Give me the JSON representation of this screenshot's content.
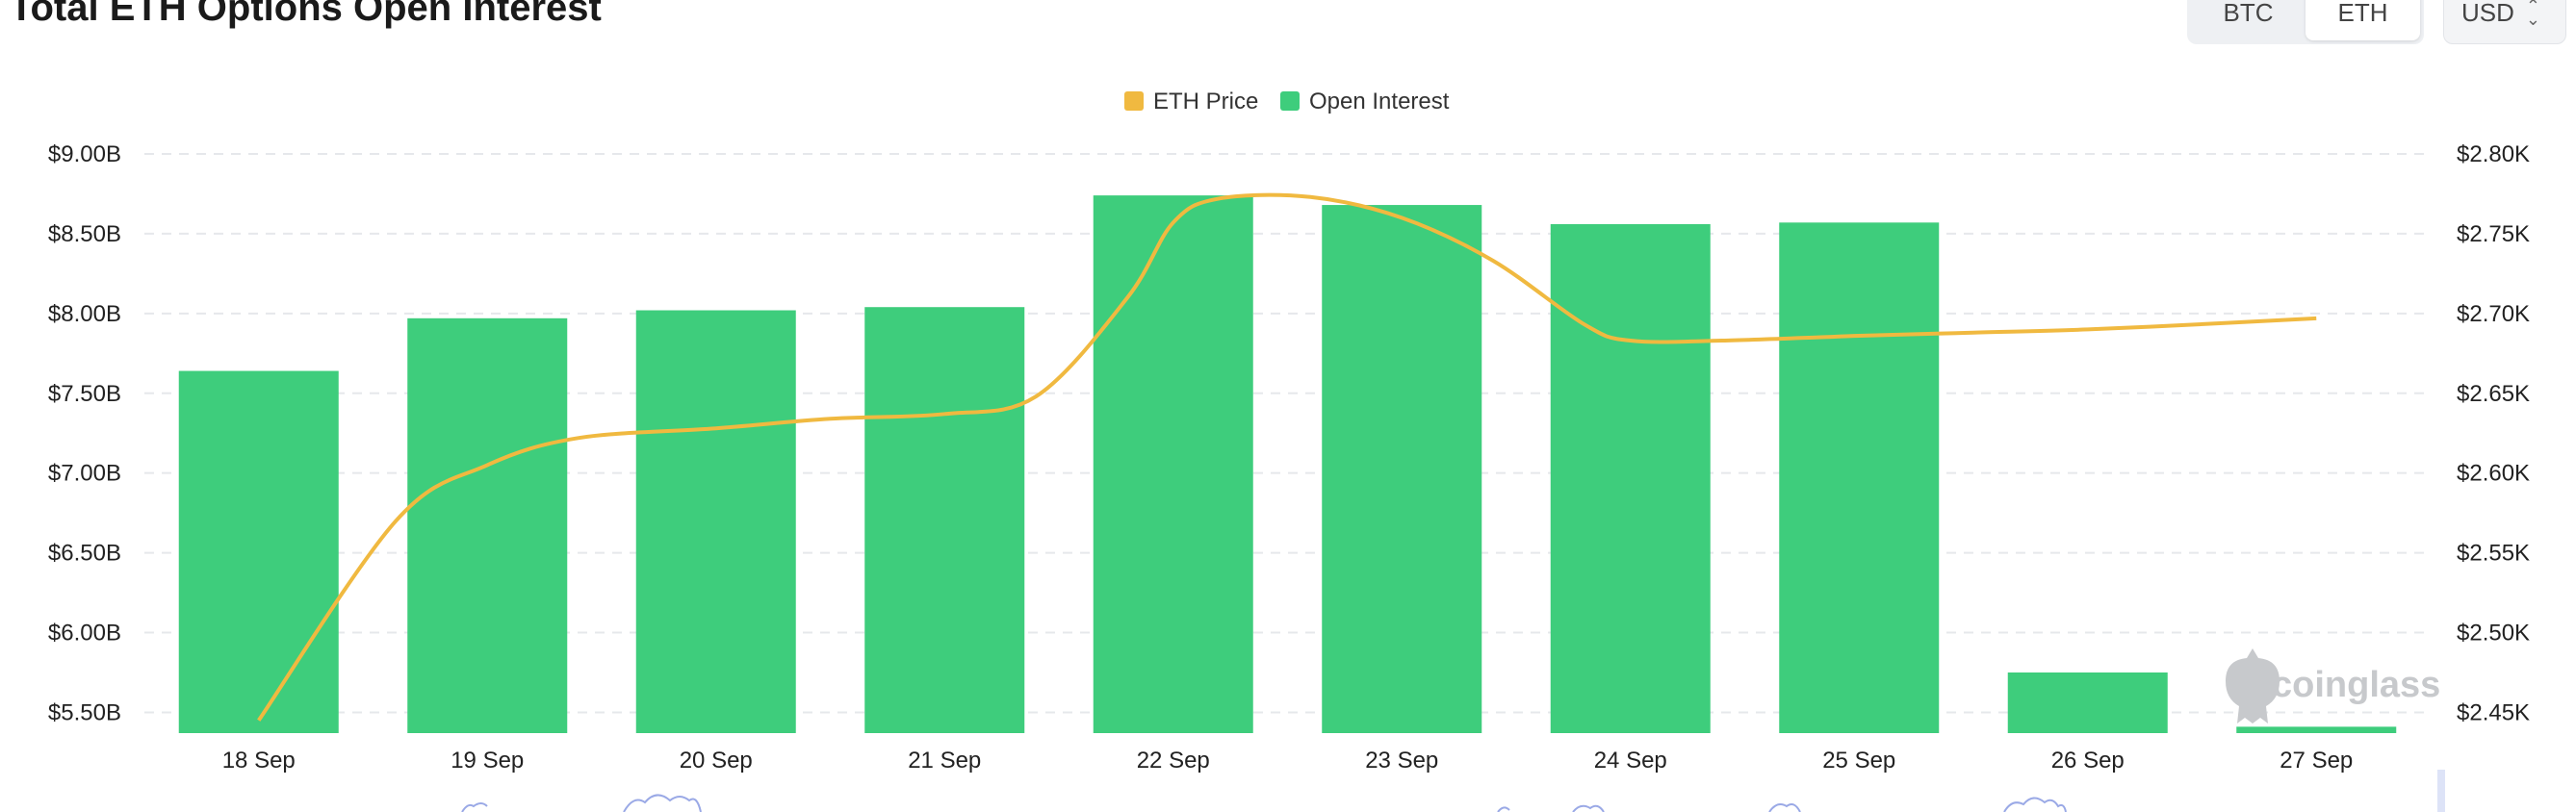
{
  "title": "Total ETH Options Open Interest",
  "toggle": {
    "options": [
      "BTC",
      "ETH"
    ],
    "selected": "ETH"
  },
  "currency": {
    "selected": "USD"
  },
  "watermark": "coinglass",
  "colors": {
    "bar": "#3ecd7c",
    "line": "#f0b940",
    "grid": "#e6e8eb",
    "background": "#ffffff"
  },
  "chart_data": {
    "type": "bar",
    "legend_position": "top-center",
    "grid": true,
    "categories": [
      "18 Sep",
      "19 Sep",
      "20 Sep",
      "21 Sep",
      "22 Sep",
      "23 Sep",
      "24 Sep",
      "25 Sep",
      "26 Sep",
      "27 Sep"
    ],
    "series": [
      {
        "name": "Open Interest",
        "type": "bar",
        "axis": "left",
        "values": [
          7.64,
          7.97,
          8.02,
          8.04,
          8.74,
          8.68,
          8.56,
          8.57,
          5.75,
          5.41
        ]
      },
      {
        "name": "ETH Price",
        "type": "line",
        "axis": "right",
        "points": [
          [
            0,
            2.445
          ],
          [
            0.6,
            2.57
          ],
          [
            1.0,
            2.605
          ],
          [
            1.4,
            2.622
          ],
          [
            2.0,
            2.628
          ],
          [
            2.5,
            2.634
          ],
          [
            3.0,
            2.637
          ],
          [
            3.4,
            2.648
          ],
          [
            3.8,
            2.71
          ],
          [
            4.0,
            2.757
          ],
          [
            4.2,
            2.772
          ],
          [
            4.6,
            2.773
          ],
          [
            5.0,
            2.76
          ],
          [
            5.4,
            2.733
          ],
          [
            5.8,
            2.693
          ],
          [
            6.0,
            2.683
          ],
          [
            6.4,
            2.683
          ],
          [
            7.0,
            2.686
          ],
          [
            7.5,
            2.688
          ],
          [
            8.0,
            2.69
          ],
          [
            8.6,
            2.694
          ],
          [
            9.0,
            2.697
          ]
        ]
      }
    ],
    "y_left": {
      "min": 5.37,
      "max": 9.0,
      "ticks": [
        5.5,
        6.0,
        6.5,
        7.0,
        7.5,
        8.0,
        8.5,
        9.0
      ],
      "tick_labels": [
        "$5.50B",
        "$6.00B",
        "$6.50B",
        "$7.00B",
        "$7.50B",
        "$8.00B",
        "$8.50B",
        "$9.00B"
      ]
    },
    "y_right": {
      "min": 2.437,
      "max": 2.8,
      "ticks": [
        2.45,
        2.5,
        2.55,
        2.6,
        2.65,
        2.7,
        2.75,
        2.8
      ],
      "tick_labels": [
        "$2.45K",
        "$2.50K",
        "$2.55K",
        "$2.60K",
        "$2.65K",
        "$2.70K",
        "$2.75K",
        "$2.80K"
      ]
    }
  }
}
